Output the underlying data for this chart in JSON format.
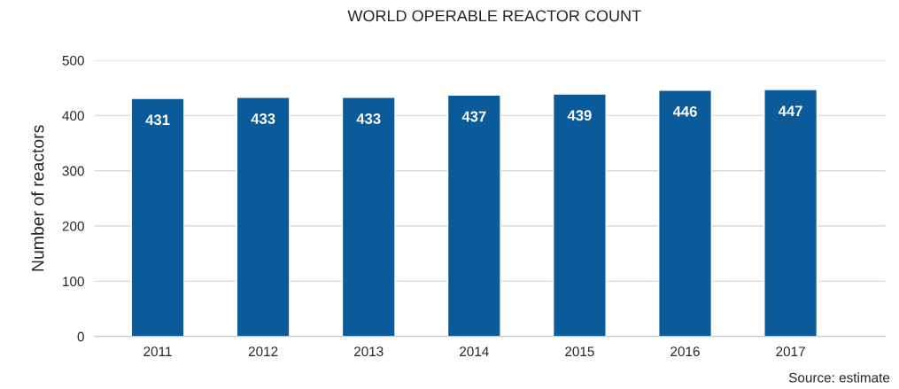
{
  "chart_data": {
    "type": "bar",
    "title": "WORLD OPERABLE REACTOR COUNT",
    "ylabel": "Number of reactors",
    "categories": [
      "2011",
      "2012",
      "2013",
      "2014",
      "2015",
      "2016",
      "2017"
    ],
    "values": [
      431,
      433,
      433,
      437,
      439,
      446,
      447
    ],
    "color": "#0b5a9a",
    "ylim": [
      0,
      500
    ],
    "yticks": [
      0,
      100,
      200,
      300,
      400,
      500
    ],
    "grid": "y",
    "data_labels": true,
    "annotations": [
      "Source: estimate"
    ]
  }
}
